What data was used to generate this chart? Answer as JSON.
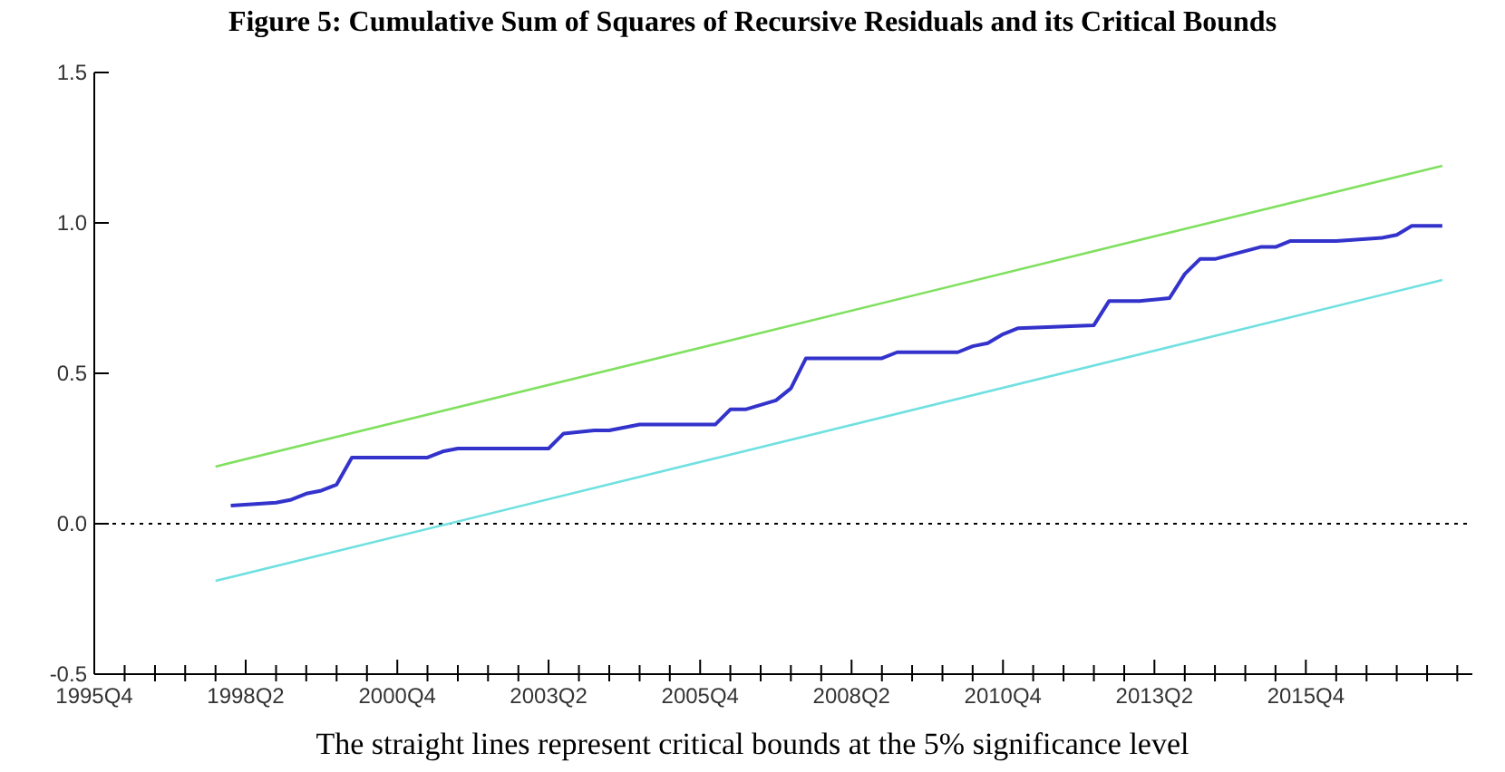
{
  "chart_data": {
    "type": "line",
    "title": "Figure 5: Cumulative Sum of Squares of Recursive Residuals and its Critical Bounds",
    "annotations": [
      "The straight lines represent critical bounds at the 5% significance level"
    ],
    "series": [
      {
        "color": "#3333cc",
        "x": [
          "1998-01",
          "1998-10",
          "1999-01",
          "1999-04",
          "1999-07",
          "1999-10",
          "2000-01",
          "2000-07",
          "2001-04",
          "2001-07",
          "2001-10",
          "2003-04",
          "2003-07",
          "2004-01",
          "2004-04",
          "2004-10",
          "2006-01",
          "2006-04",
          "2006-07",
          "2007-01",
          "2007-04",
          "2007-07",
          "2008-10",
          "2009-01",
          "2010-01",
          "2010-04",
          "2010-07",
          "2010-10",
          "2011-01",
          "2012-04",
          "2012-07",
          "2013-01",
          "2013-07",
          "2013-10",
          "2014-01",
          "2014-04",
          "2015-01",
          "2015-04",
          "2015-07",
          "2016-01",
          "2016-04",
          "2017-01",
          "2017-04",
          "2017-07",
          "2018-01"
        ],
        "values": [
          0.06,
          0.07,
          0.08,
          0.1,
          0.11,
          0.13,
          0.22,
          0.22,
          0.22,
          0.24,
          0.25,
          0.25,
          0.3,
          0.31,
          0.31,
          0.33,
          0.33,
          0.38,
          0.38,
          0.41,
          0.45,
          0.55,
          0.55,
          0.57,
          0.57,
          0.59,
          0.6,
          0.63,
          0.65,
          0.66,
          0.74,
          0.74,
          0.75,
          0.83,
          0.88,
          0.88,
          0.92,
          0.92,
          0.94,
          0.94,
          0.94,
          0.95,
          0.96,
          0.99,
          0.99
        ]
      },
      {
        "color": "#80e060",
        "x": [
          "1997-10",
          "2018-01"
        ],
        "values": [
          0.19,
          1.19
        ]
      },
      {
        "color": "#70e0e0",
        "x": [
          "1997-10",
          "2018-01"
        ],
        "values": [
          -0.19,
          0.81
        ]
      }
    ],
    "xlim": [
      "1995-10",
      "2018-07"
    ],
    "xticks": [
      {
        "value": "1995-10",
        "label": "1995Q4"
      },
      {
        "value": "1996-04",
        "label": null
      },
      {
        "value": "1996-10",
        "label": null
      },
      {
        "value": "1997-04",
        "label": null
      },
      {
        "value": "1997-10",
        "label": null
      },
      {
        "value": "1998-04",
        "label": "1998Q2"
      },
      {
        "value": "1998-10",
        "label": null
      },
      {
        "value": "1999-04",
        "label": null
      },
      {
        "value": "1999-10",
        "label": null
      },
      {
        "value": "2000-04",
        "label": null
      },
      {
        "value": "2000-10",
        "label": "2000Q4"
      },
      {
        "value": "2001-04",
        "label": null
      },
      {
        "value": "2001-10",
        "label": null
      },
      {
        "value": "2002-04",
        "label": null
      },
      {
        "value": "2002-10",
        "label": null
      },
      {
        "value": "2003-04",
        "label": "2003Q2"
      },
      {
        "value": "2003-10",
        "label": null
      },
      {
        "value": "2004-04",
        "label": null
      },
      {
        "value": "2004-10",
        "label": null
      },
      {
        "value": "2005-04",
        "label": null
      },
      {
        "value": "2005-10",
        "label": "2005Q4"
      },
      {
        "value": "2006-04",
        "label": null
      },
      {
        "value": "2006-10",
        "label": null
      },
      {
        "value": "2007-04",
        "label": null
      },
      {
        "value": "2007-10",
        "label": null
      },
      {
        "value": "2008-04",
        "label": "2008Q2"
      },
      {
        "value": "2008-10",
        "label": null
      },
      {
        "value": "2009-04",
        "label": null
      },
      {
        "value": "2009-10",
        "label": null
      },
      {
        "value": "2010-04",
        "label": null
      },
      {
        "value": "2010-10",
        "label": "2010Q4"
      },
      {
        "value": "2011-04",
        "label": null
      },
      {
        "value": "2011-10",
        "label": null
      },
      {
        "value": "2012-04",
        "label": null
      },
      {
        "value": "2012-10",
        "label": null
      },
      {
        "value": "2013-04",
        "label": "2013Q2"
      },
      {
        "value": "2013-10",
        "label": null
      },
      {
        "value": "2014-04",
        "label": null
      },
      {
        "value": "2014-10",
        "label": null
      },
      {
        "value": "2015-04",
        "label": null
      },
      {
        "value": "2015-10",
        "label": "2015Q4"
      },
      {
        "value": "2016-04",
        "label": null
      },
      {
        "value": "2016-10",
        "label": null
      },
      {
        "value": "2017-04",
        "label": null
      },
      {
        "value": "2017-10",
        "label": null
      },
      {
        "value": "2018-04",
        "label": null
      }
    ],
    "ylim": [
      -0.5,
      1.5
    ],
    "yticks": [
      {
        "value": -0.5,
        "label": "-0.5"
      },
      {
        "value": 0,
        "label": "0.0"
      },
      {
        "value": 0.5,
        "label": "0.5"
      },
      {
        "value": 1,
        "label": "1.0"
      },
      {
        "value": 1.5,
        "label": "1.5"
      }
    ],
    "ref_lines": [
      {
        "axis": "y",
        "value": 0,
        "color": "#000000",
        "line_style": "dotted"
      }
    ],
    "grid": false,
    "marker": "none",
    "line_style": "solid"
  }
}
